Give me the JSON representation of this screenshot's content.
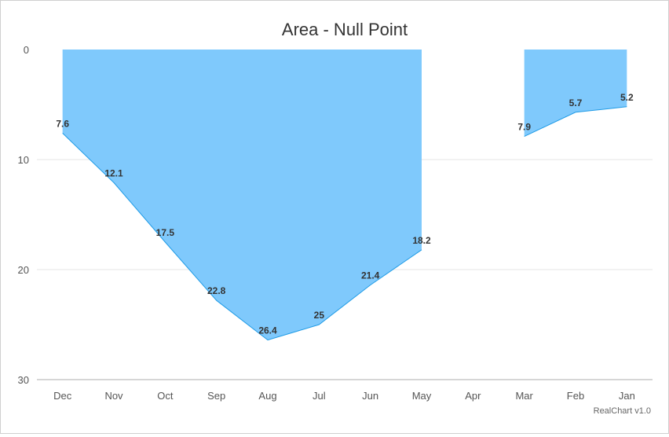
{
  "chart_data": {
    "type": "area",
    "title": "Area - Null Point",
    "xlabel": "",
    "ylabel": "",
    "categories": [
      "Dec",
      "Nov",
      "Oct",
      "Sep",
      "Aug",
      "Jul",
      "Jun",
      "May",
      "Apr",
      "Mar",
      "Feb",
      "Jan"
    ],
    "values": [
      7.6,
      12.1,
      17.5,
      22.8,
      26.4,
      25,
      21.4,
      18.2,
      null,
      7.9,
      5.7,
      5.2
    ],
    "y_ticks": [
      "0",
      "10",
      "20",
      "30"
    ],
    "ylim": [
      0,
      30
    ],
    "y_reversed": true,
    "grid": true,
    "legend": "none",
    "colors": {
      "fill": "#7fc9fc",
      "line": "#1f9be6"
    }
  },
  "credit": "RealChart v1.0"
}
